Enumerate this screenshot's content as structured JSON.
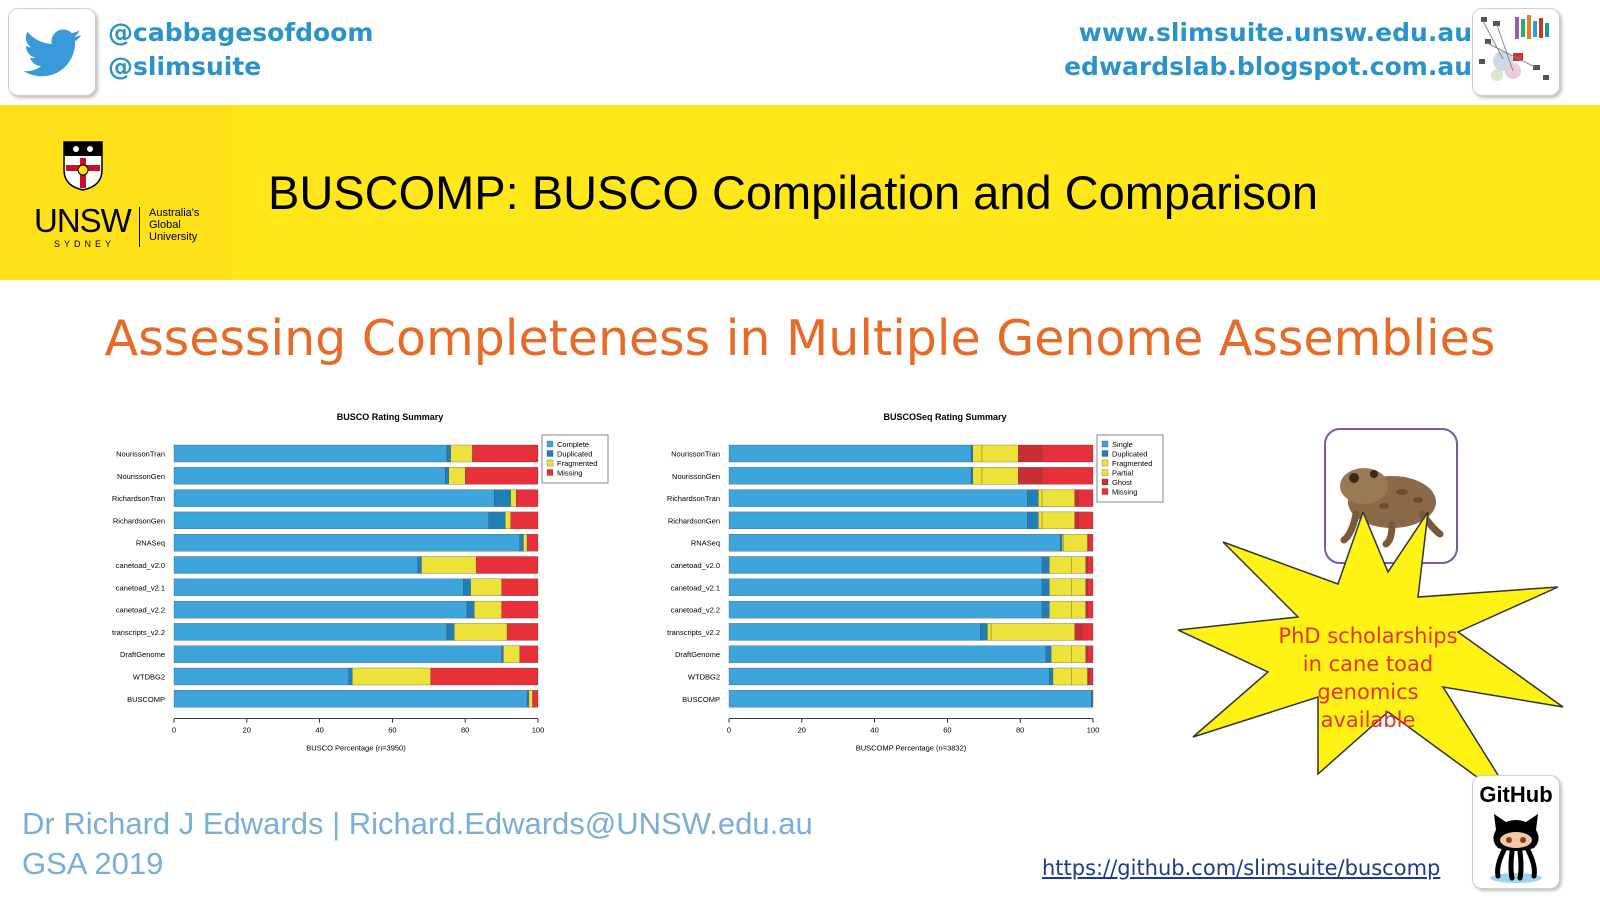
{
  "header": {
    "handles": [
      "@cabbagesofdoom",
      "@slimsuite"
    ],
    "urls": [
      "www.slimsuite.unsw.edu.au",
      "edwardslab.blogspot.com.au"
    ]
  },
  "banner": {
    "logo_text": "UNSW",
    "logo_sub": "SYDNEY",
    "logo_tag": [
      "Australia's",
      "Global",
      "University"
    ],
    "title": "BUSCOMP: BUSCO Compilation and Comparison"
  },
  "subtitle": "Assessing Completeness in Multiple Genome Assemblies",
  "colors": {
    "complete": "#3ea4dc",
    "duplicated": "#1f7fb6",
    "fragmented": "#ede23a",
    "missing": "#e8303a",
    "ghost": "#c72f34",
    "orange": "#e66b26",
    "banner": "#ffe719"
  },
  "chart_data": [
    {
      "type": "bar",
      "orientation": "horizontal",
      "stacked": true,
      "title": "BUSCO Rating Summary",
      "xlabel": "BUSCO Percentage (n=3950)",
      "ylabel": "",
      "xlim": [
        0,
        100
      ],
      "xticks": [
        0,
        20,
        40,
        60,
        80,
        100
      ],
      "grid": false,
      "legend_position": "top-right",
      "categories": [
        "NourissonTran",
        "NourissonGen",
        "RichardsonTran",
        "RichardsonGen",
        "RNASeq",
        "canetoad_v2.0",
        "canetoad_v2.1",
        "canetoad_v2.2",
        "transcripts_v2.2",
        "DraftGenome",
        "WTDBG2",
        "BUSCOMP"
      ],
      "series": [
        {
          "name": "Complete",
          "values": [
            75,
            74.5,
            88,
            86.5,
            95,
            67,
            79.5,
            80.5,
            75,
            90,
            48,
            97
          ]
        },
        {
          "name": "Duplicated",
          "values": [
            1,
            1,
            4.5,
            4.5,
            1,
            1,
            2,
            2,
            2,
            0.5,
            1,
            0.5
          ]
        },
        {
          "name": "Fragmented",
          "values": [
            6,
            4.5,
            1.5,
            1.5,
            1,
            15,
            8.5,
            7.5,
            14.5,
            4.5,
            21.5,
            1
          ]
        },
        {
          "name": "Missing",
          "values": [
            18,
            20,
            6,
            7.5,
            3,
            17,
            10,
            10,
            8.5,
            5,
            29.5,
            1.5
          ]
        }
      ]
    },
    {
      "type": "bar",
      "orientation": "horizontal",
      "stacked": true,
      "title": "BUSCOSeq Rating Summary",
      "xlabel": "BUSCOMP Percentage (n=3832)",
      "ylabel": "",
      "xlim": [
        0,
        100
      ],
      "xticks": [
        0,
        20,
        40,
        60,
        80,
        100
      ],
      "grid": false,
      "legend_position": "top-right",
      "categories": [
        "NourissonTran",
        "NourissonGen",
        "RichardsonTran",
        "RichardsonGen",
        "RNASeq",
        "canetoad_v2.0",
        "canetoad_v2.1",
        "canetoad_v2.2",
        "transcripts_v2.2",
        "DraftGenome",
        "WTDBG2",
        "BUSCOMP"
      ],
      "series": [
        {
          "name": "Single",
          "values": [
            66.5,
            66.5,
            82,
            82,
            91,
            86,
            86,
            86,
            69,
            87,
            88,
            99.5
          ]
        },
        {
          "name": "Duplicated",
          "values": [
            0.5,
            0.5,
            3,
            3,
            0.5,
            2,
            2,
            2,
            2,
            1.5,
            1,
            0.3
          ]
        },
        {
          "name": "Fragmented",
          "values": [
            2.5,
            2.5,
            1,
            1,
            0.5,
            6,
            6,
            6,
            1,
            5.5,
            5,
            0.1
          ]
        },
        {
          "name": "Partial",
          "values": [
            10,
            10,
            9,
            9,
            6.5,
            4,
            4,
            4,
            23,
            4,
            4.5,
            0.1
          ]
        },
        {
          "name": "Ghost",
          "values": [
            6.5,
            6.5,
            1,
            1,
            0.3,
            0.5,
            0.5,
            0.5,
            2,
            0.5,
            0.5,
            0
          ]
        },
        {
          "name": "Missing",
          "values": [
            14,
            14,
            4,
            4,
            1.2,
            1.5,
            1.5,
            1.5,
            3,
            1.5,
            1,
            0
          ]
        }
      ]
    }
  ],
  "promo": {
    "lines": [
      "PhD scholarships",
      "in cane toad",
      "genomics available"
    ]
  },
  "footer": {
    "author": "Dr Richard J Edwards | Richard.Edwards@UNSW.edu.au",
    "event": "GSA 2019",
    "github_label": "GitHub",
    "github_url": "https://github.com/slimsuite/buscomp"
  }
}
